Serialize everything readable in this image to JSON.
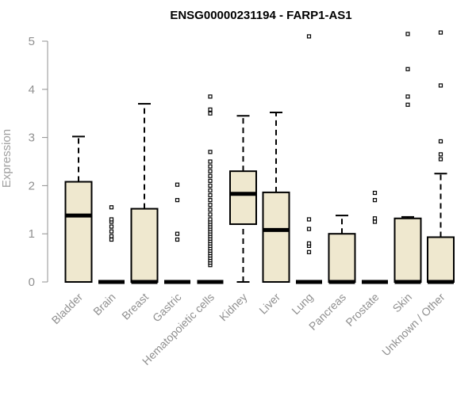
{
  "chart_data": {
    "type": "boxplot",
    "title": "ENSG00000231194 - FARP1-AS1",
    "ylabel": "Expression",
    "xlabel": "",
    "ylim": [
      0,
      5.2
    ],
    "yticks": [
      0,
      1,
      2,
      3,
      4,
      5
    ],
    "box_fill": "#efe8cf",
    "categories": [
      "Bladder",
      "Brain",
      "Breast",
      "Gastric",
      "Hematopoietic cells",
      "Kidney",
      "Liver",
      "Lung",
      "Pancreas",
      "Prostate",
      "Skin",
      "Unknown / Other"
    ],
    "boxes": [
      {
        "q1": 0,
        "median": 1.38,
        "q3": 2.08,
        "whisker_low": 0,
        "whisker_high": 3.02,
        "outliers": []
      },
      {
        "q1": 0,
        "median": 0,
        "q3": 0,
        "whisker_low": 0,
        "whisker_high": 0,
        "outliers": [
          0.88,
          0.95,
          1.05,
          1.15,
          1.25,
          1.3,
          1.55
        ]
      },
      {
        "q1": 0,
        "median": 0,
        "q3": 1.52,
        "whisker_low": 0,
        "whisker_high": 3.7,
        "outliers": []
      },
      {
        "q1": 0,
        "median": 0,
        "q3": 0,
        "whisker_low": 0,
        "whisker_high": 0,
        "outliers": [
          0.88,
          1.0,
          1.7,
          2.02
        ]
      },
      {
        "q1": 0,
        "median": 0,
        "q3": 0,
        "whisker_low": 0,
        "whisker_high": 0,
        "outliers": [
          0.35,
          0.4,
          0.45,
          0.5,
          0.55,
          0.6,
          0.65,
          0.7,
          0.75,
          0.8,
          0.85,
          0.9,
          0.95,
          1.0,
          1.05,
          1.1,
          1.15,
          1.2,
          1.25,
          1.3,
          1.4,
          1.5,
          1.6,
          1.7,
          1.8,
          1.9,
          2.0,
          2.1,
          2.2,
          2.3,
          2.4,
          2.5,
          2.7,
          3.5,
          3.58,
          3.85
        ]
      },
      {
        "q1": 1.2,
        "median": 1.83,
        "q3": 2.3,
        "whisker_low": 0,
        "whisker_high": 3.45,
        "outliers": []
      },
      {
        "q1": 0,
        "median": 1.08,
        "q3": 1.86,
        "whisker_low": 0,
        "whisker_high": 3.52,
        "outliers": []
      },
      {
        "q1": 0,
        "median": 0,
        "q3": 0,
        "whisker_low": 0,
        "whisker_high": 0,
        "outliers": [
          0.62,
          0.75,
          0.8,
          1.1,
          1.3,
          5.1
        ]
      },
      {
        "q1": 0,
        "median": 0,
        "q3": 1.0,
        "whisker_low": 0,
        "whisker_high": 1.38,
        "outliers": []
      },
      {
        "q1": 0,
        "median": 0,
        "q3": 0,
        "whisker_low": 0,
        "whisker_high": 0,
        "outliers": [
          1.25,
          1.32,
          1.7,
          1.85
        ]
      },
      {
        "q1": 0,
        "median": 0,
        "q3": 1.32,
        "whisker_low": 0,
        "whisker_high": 1.35,
        "outliers": [
          3.68,
          3.85,
          4.42,
          5.15
        ]
      },
      {
        "q1": 0,
        "median": 0,
        "q3": 0.93,
        "whisker_low": 0,
        "whisker_high": 2.25,
        "outliers": [
          2.55,
          2.65,
          2.92,
          4.08,
          5.18
        ]
      }
    ]
  }
}
